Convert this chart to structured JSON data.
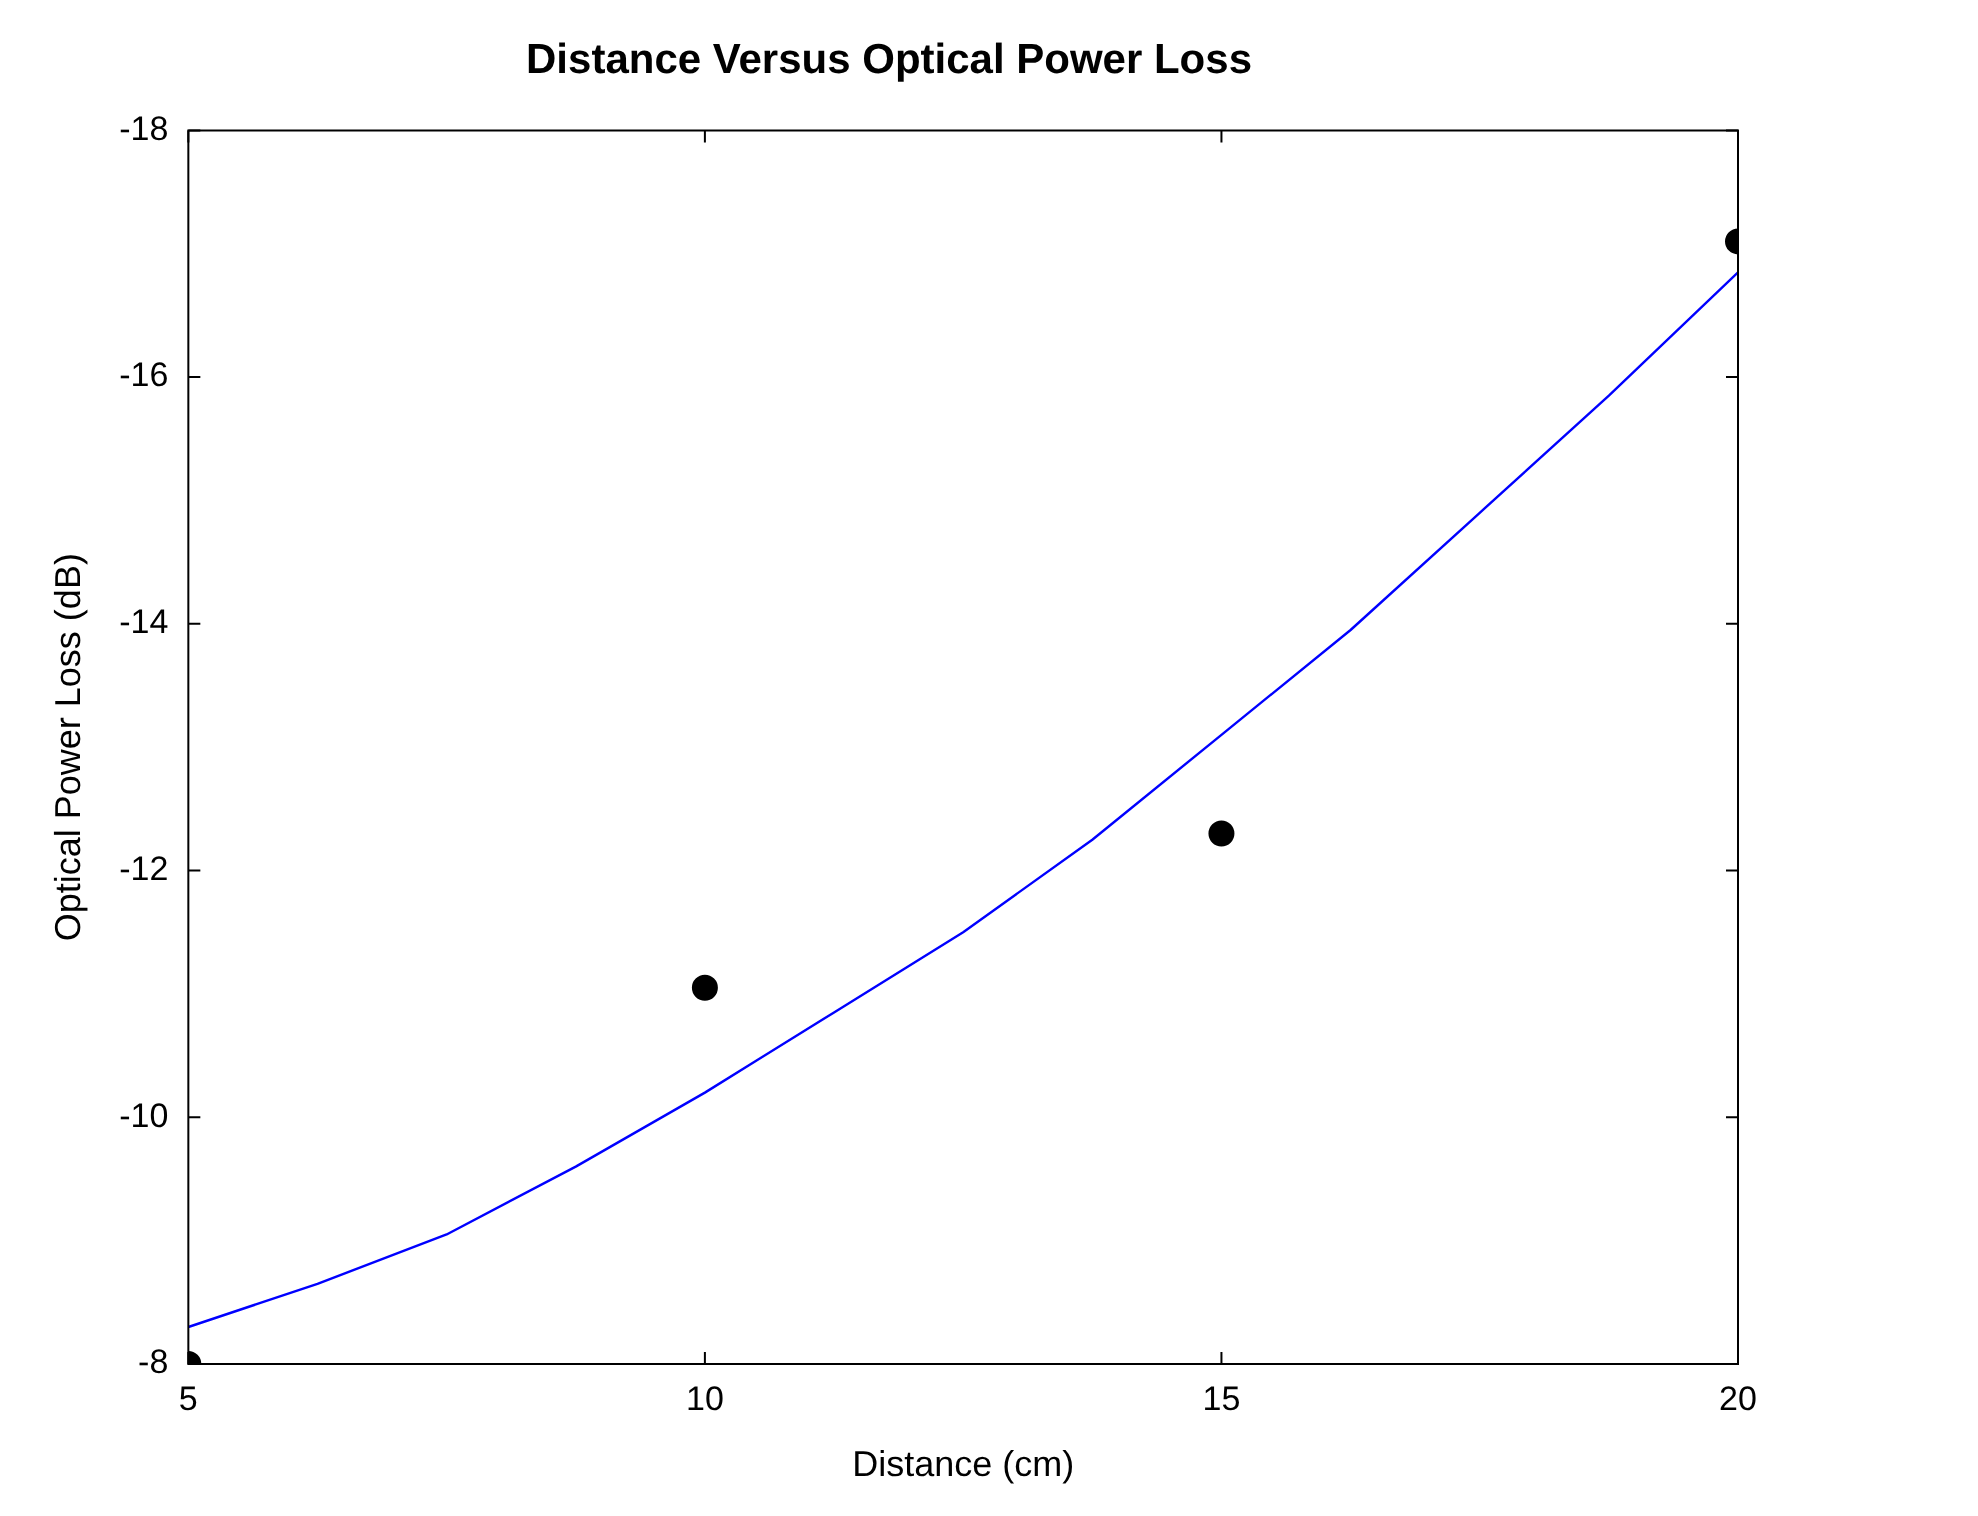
{
  "chart_data": {
    "type": "scatter",
    "title": "Distance Versus Optical Power Loss",
    "xlabel": "Distance (cm)",
    "ylabel": "Optical Power Loss (dB)",
    "xlim": [
      5,
      20
    ],
    "xticks": [
      5,
      10,
      15,
      20
    ],
    "ylim": [
      -8,
      -18
    ],
    "yticks": [
      -8,
      -10,
      -12,
      -14,
      -16,
      -18
    ],
    "grid": false,
    "legend": false,
    "series": [
      {
        "color": "#000000",
        "marker": "circle",
        "x": [
          5,
          10,
          15,
          20
        ],
        "values": [
          -8,
          -11.05,
          -12.3,
          -17.1
        ]
      },
      {
        "type": "line",
        "color": "#0000ff",
        "marker": "none",
        "line_style": "solid",
        "x": [
          5,
          6.25,
          7.5,
          8.75,
          10,
          11.25,
          12.5,
          13.75,
          15,
          16.25,
          17.5,
          18.75,
          20
        ],
        "values": [
          -8.3,
          -8.65,
          -9.05,
          -9.6,
          -10.2,
          -10.85,
          -11.5,
          -12.25,
          -13.1,
          -13.95,
          -14.9,
          -15.85,
          -16.85
        ]
      }
    ]
  }
}
